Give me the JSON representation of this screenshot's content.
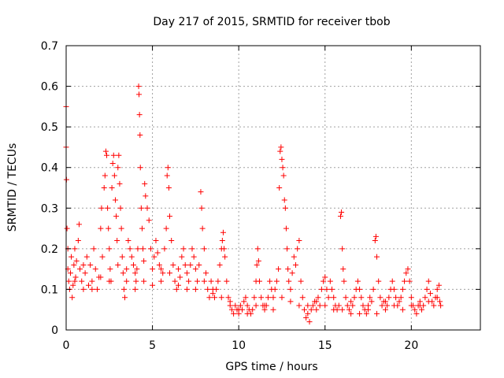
{
  "chart_data": {
    "type": "scatter",
    "title": "Day 217 of 2015, SRMTID for receiver tbob",
    "xlabel": "GPS time / hours",
    "ylabel": "SRMTID / TECUs",
    "xlim": [
      0,
      24
    ],
    "ylim": [
      0,
      0.7
    ],
    "xticks": [
      0,
      5,
      10,
      15,
      20
    ],
    "xtick_labels": [
      "0",
      "5",
      "10",
      "15",
      "20"
    ],
    "yticks": [
      0,
      0.1,
      0.2,
      0.3,
      0.4,
      0.5,
      0.6,
      0.7
    ],
    "ytick_labels": [
      "0",
      "0.1",
      "0.2",
      "0.3",
      "0.4",
      "0.5",
      "0.6",
      "0.7"
    ],
    "grid": true,
    "marker": "+",
    "color": "#ff0000",
    "series": [
      {
        "name": "SRMTID",
        "points": [
          [
            0.0,
            0.55
          ],
          [
            0.0,
            0.45
          ],
          [
            0.02,
            0.37
          ],
          [
            0.05,
            0.25
          ],
          [
            0.1,
            0.2
          ],
          [
            0.1,
            0.15
          ],
          [
            0.15,
            0.12
          ],
          [
            0.2,
            0.1
          ],
          [
            0.25,
            0.14
          ],
          [
            0.3,
            0.18
          ],
          [
            0.35,
            0.08
          ],
          [
            0.4,
            0.11
          ],
          [
            0.45,
            0.16
          ],
          [
            0.5,
            0.2
          ],
          [
            0.55,
            0.13
          ],
          [
            0.6,
            0.17
          ],
          [
            0.7,
            0.22
          ],
          [
            0.75,
            0.26
          ],
          [
            0.8,
            0.15
          ],
          [
            0.9,
            0.12
          ],
          [
            1.0,
            0.1
          ],
          [
            1.1,
            0.14
          ],
          [
            1.2,
            0.18
          ],
          [
            1.3,
            0.11
          ],
          [
            1.4,
            0.16
          ],
          [
            1.5,
            0.12
          ],
          [
            1.6,
            0.2
          ],
          [
            1.7,
            0.15
          ],
          [
            1.8,
            0.1
          ],
          [
            1.9,
            0.13
          ],
          [
            2.0,
            0.25
          ],
          [
            2.05,
            0.3
          ],
          [
            2.1,
            0.18
          ],
          [
            2.2,
            0.35
          ],
          [
            2.25,
            0.38
          ],
          [
            2.3,
            0.44
          ],
          [
            2.35,
            0.43
          ],
          [
            2.4,
            0.3
          ],
          [
            2.45,
            0.25
          ],
          [
            2.5,
            0.2
          ],
          [
            2.55,
            0.15
          ],
          [
            2.6,
            0.12
          ],
          [
            2.65,
            0.35
          ],
          [
            2.7,
            0.41
          ],
          [
            2.75,
            0.43
          ],
          [
            2.8,
            0.38
          ],
          [
            2.85,
            0.32
          ],
          [
            2.9,
            0.28
          ],
          [
            2.95,
            0.22
          ],
          [
            3.0,
            0.4
          ],
          [
            3.05,
            0.43
          ],
          [
            3.1,
            0.36
          ],
          [
            3.15,
            0.3
          ],
          [
            3.2,
            0.25
          ],
          [
            3.25,
            0.18
          ],
          [
            3.3,
            0.14
          ],
          [
            3.35,
            0.1
          ],
          [
            3.4,
            0.08
          ],
          [
            3.5,
            0.15
          ],
          [
            3.6,
            0.22
          ],
          [
            3.7,
            0.2
          ],
          [
            3.8,
            0.18
          ],
          [
            3.9,
            0.16
          ],
          [
            4.0,
            0.14
          ],
          [
            4.05,
            0.12
          ],
          [
            4.1,
            0.15
          ],
          [
            4.15,
            0.2
          ],
          [
            4.2,
            0.6
          ],
          [
            4.22,
            0.58
          ],
          [
            4.25,
            0.53
          ],
          [
            4.28,
            0.48
          ],
          [
            4.3,
            0.4
          ],
          [
            4.35,
            0.3
          ],
          [
            4.4,
            0.25
          ],
          [
            4.45,
            0.2
          ],
          [
            4.5,
            0.17
          ],
          [
            4.55,
            0.36
          ],
          [
            4.6,
            0.33
          ],
          [
            4.7,
            0.3
          ],
          [
            4.8,
            0.27
          ],
          [
            4.9,
            0.2
          ],
          [
            5.0,
            0.15
          ],
          [
            5.1,
            0.18
          ],
          [
            5.2,
            0.22
          ],
          [
            5.3,
            0.19
          ],
          [
            5.4,
            0.16
          ],
          [
            5.5,
            0.15
          ],
          [
            5.6,
            0.14
          ],
          [
            5.7,
            0.2
          ],
          [
            5.8,
            0.25
          ],
          [
            5.85,
            0.38
          ],
          [
            5.9,
            0.4
          ],
          [
            5.95,
            0.35
          ],
          [
            6.0,
            0.28
          ],
          [
            6.1,
            0.22
          ],
          [
            6.2,
            0.16
          ],
          [
            6.3,
            0.12
          ],
          [
            6.4,
            0.1
          ],
          [
            6.5,
            0.15
          ],
          [
            6.6,
            0.13
          ],
          [
            6.7,
            0.18
          ],
          [
            6.8,
            0.2
          ],
          [
            6.9,
            0.16
          ],
          [
            7.0,
            0.14
          ],
          [
            7.1,
            0.12
          ],
          [
            7.2,
            0.16
          ],
          [
            7.3,
            0.2
          ],
          [
            7.4,
            0.18
          ],
          [
            7.5,
            0.15
          ],
          [
            7.6,
            0.12
          ],
          [
            7.7,
            0.16
          ],
          [
            7.8,
            0.34
          ],
          [
            7.85,
            0.3
          ],
          [
            7.9,
            0.25
          ],
          [
            8.0,
            0.2
          ],
          [
            8.1,
            0.14
          ],
          [
            8.2,
            0.1
          ],
          [
            8.3,
            0.08
          ],
          [
            8.4,
            0.12
          ],
          [
            8.5,
            0.1
          ],
          [
            8.6,
            0.08
          ],
          [
            8.7,
            0.1
          ],
          [
            8.8,
            0.12
          ],
          [
            8.9,
            0.16
          ],
          [
            9.0,
            0.2
          ],
          [
            9.05,
            0.22
          ],
          [
            9.1,
            0.24
          ],
          [
            9.15,
            0.2
          ],
          [
            9.2,
            0.18
          ],
          [
            9.3,
            0.12
          ],
          [
            9.4,
            0.08
          ],
          [
            9.5,
            0.06
          ],
          [
            9.6,
            0.05
          ],
          [
            9.7,
            0.04
          ],
          [
            9.8,
            0.06
          ],
          [
            9.9,
            0.05
          ],
          [
            10.0,
            0.04
          ],
          [
            10.1,
            0.06
          ],
          [
            10.2,
            0.05
          ],
          [
            10.3,
            0.07
          ],
          [
            10.4,
            0.08
          ],
          [
            10.5,
            0.06
          ],
          [
            10.6,
            0.05
          ],
          [
            10.7,
            0.04
          ],
          [
            10.8,
            0.05
          ],
          [
            10.9,
            0.08
          ],
          [
            11.0,
            0.12
          ],
          [
            11.05,
            0.16
          ],
          [
            11.1,
            0.2
          ],
          [
            11.15,
            0.17
          ],
          [
            11.2,
            0.12
          ],
          [
            11.3,
            0.08
          ],
          [
            11.4,
            0.06
          ],
          [
            11.5,
            0.05
          ],
          [
            11.6,
            0.06
          ],
          [
            11.7,
            0.08
          ],
          [
            11.8,
            0.12
          ],
          [
            11.9,
            0.1
          ],
          [
            12.0,
            0.08
          ],
          [
            12.1,
            0.1
          ],
          [
            12.2,
            0.12
          ],
          [
            12.3,
            0.15
          ],
          [
            12.35,
            0.35
          ],
          [
            12.4,
            0.44
          ],
          [
            12.45,
            0.45
          ],
          [
            12.5,
            0.42
          ],
          [
            12.55,
            0.4
          ],
          [
            12.6,
            0.38
          ],
          [
            12.65,
            0.32
          ],
          [
            12.7,
            0.3
          ],
          [
            12.75,
            0.25
          ],
          [
            12.8,
            0.2
          ],
          [
            12.85,
            0.15
          ],
          [
            12.9,
            0.12
          ],
          [
            13.0,
            0.1
          ],
          [
            13.1,
            0.14
          ],
          [
            13.2,
            0.18
          ],
          [
            13.3,
            0.16
          ],
          [
            13.4,
            0.2
          ],
          [
            13.5,
            0.22
          ],
          [
            13.6,
            0.12
          ],
          [
            13.7,
            0.08
          ],
          [
            13.8,
            0.05
          ],
          [
            13.9,
            0.03
          ],
          [
            14.0,
            0.04
          ],
          [
            14.1,
            0.02
          ],
          [
            14.2,
            0.05
          ],
          [
            14.3,
            0.06
          ],
          [
            14.4,
            0.07
          ],
          [
            14.5,
            0.05
          ],
          [
            14.6,
            0.08
          ],
          [
            14.7,
            0.06
          ],
          [
            14.8,
            0.1
          ],
          [
            14.9,
            0.12
          ],
          [
            15.0,
            0.13
          ],
          [
            15.1,
            0.1
          ],
          [
            15.2,
            0.08
          ],
          [
            15.3,
            0.12
          ],
          [
            15.4,
            0.1
          ],
          [
            15.5,
            0.08
          ],
          [
            15.6,
            0.06
          ],
          [
            15.7,
            0.05
          ],
          [
            15.8,
            0.06
          ],
          [
            15.9,
            0.28
          ],
          [
            15.95,
            0.29
          ],
          [
            16.0,
            0.2
          ],
          [
            16.05,
            0.15
          ],
          [
            16.1,
            0.12
          ],
          [
            16.2,
            0.08
          ],
          [
            16.3,
            0.06
          ],
          [
            16.4,
            0.05
          ],
          [
            16.5,
            0.04
          ],
          [
            16.6,
            0.06
          ],
          [
            16.7,
            0.08
          ],
          [
            16.8,
            0.1
          ],
          [
            16.9,
            0.12
          ],
          [
            17.0,
            0.1
          ],
          [
            17.1,
            0.08
          ],
          [
            17.2,
            0.06
          ],
          [
            17.3,
            0.05
          ],
          [
            17.4,
            0.04
          ],
          [
            17.5,
            0.06
          ],
          [
            17.6,
            0.08
          ],
          [
            17.7,
            0.07
          ],
          [
            17.8,
            0.1
          ],
          [
            17.9,
            0.22
          ],
          [
            17.95,
            0.23
          ],
          [
            18.0,
            0.18
          ],
          [
            18.1,
            0.12
          ],
          [
            18.2,
            0.08
          ],
          [
            18.3,
            0.06
          ],
          [
            18.4,
            0.07
          ],
          [
            18.5,
            0.05
          ],
          [
            18.6,
            0.06
          ],
          [
            18.7,
            0.08
          ],
          [
            18.8,
            0.1
          ],
          [
            18.9,
            0.12
          ],
          [
            19.0,
            0.1
          ],
          [
            19.1,
            0.08
          ],
          [
            19.2,
            0.06
          ],
          [
            19.3,
            0.07
          ],
          [
            19.4,
            0.08
          ],
          [
            19.5,
            0.1
          ],
          [
            19.6,
            0.12
          ],
          [
            19.7,
            0.14
          ],
          [
            19.8,
            0.15
          ],
          [
            19.9,
            0.12
          ],
          [
            20.0,
            0.08
          ],
          [
            20.1,
            0.06
          ],
          [
            20.2,
            0.05
          ],
          [
            20.3,
            0.04
          ],
          [
            20.4,
            0.06
          ],
          [
            20.5,
            0.07
          ],
          [
            20.6,
            0.05
          ],
          [
            20.7,
            0.06
          ],
          [
            20.8,
            0.08
          ],
          [
            20.9,
            0.1
          ],
          [
            21.0,
            0.12
          ],
          [
            21.1,
            0.09
          ],
          [
            21.2,
            0.07
          ],
          [
            21.3,
            0.06
          ],
          [
            21.4,
            0.08
          ],
          [
            21.5,
            0.1
          ],
          [
            21.6,
            0.11
          ],
          [
            21.65,
            0.07
          ],
          [
            21.7,
            0.06
          ],
          [
            0.5,
            0.12
          ],
          [
            1.0,
            0.16
          ],
          [
            1.5,
            0.1
          ],
          [
            2.0,
            0.13
          ],
          [
            2.5,
            0.12
          ],
          [
            3.0,
            0.16
          ],
          [
            3.5,
            0.12
          ],
          [
            4.0,
            0.1
          ],
          [
            4.5,
            0.12
          ],
          [
            5.0,
            0.11
          ],
          [
            5.5,
            0.12
          ],
          [
            6.0,
            0.14
          ],
          [
            6.5,
            0.11
          ],
          [
            7.0,
            0.1
          ],
          [
            7.5,
            0.1
          ],
          [
            8.0,
            0.12
          ],
          [
            8.5,
            0.09
          ],
          [
            9.0,
            0.08
          ],
          [
            9.5,
            0.07
          ],
          [
            10.0,
            0.05
          ],
          [
            10.5,
            0.04
          ],
          [
            11.0,
            0.06
          ],
          [
            11.5,
            0.06
          ],
          [
            12.0,
            0.05
          ],
          [
            12.5,
            0.08
          ],
          [
            13.0,
            0.07
          ],
          [
            13.5,
            0.06
          ],
          [
            14.0,
            0.06
          ],
          [
            14.5,
            0.07
          ],
          [
            15.0,
            0.06
          ],
          [
            15.5,
            0.05
          ],
          [
            16.0,
            0.05
          ],
          [
            16.5,
            0.07
          ],
          [
            17.0,
            0.04
          ],
          [
            17.5,
            0.05
          ],
          [
            18.0,
            0.04
          ],
          [
            18.5,
            0.07
          ],
          [
            19.0,
            0.06
          ],
          [
            19.5,
            0.05
          ],
          [
            20.0,
            0.06
          ],
          [
            20.5,
            0.06
          ],
          [
            21.0,
            0.07
          ],
          [
            21.5,
            0.08
          ]
        ]
      }
    ]
  }
}
